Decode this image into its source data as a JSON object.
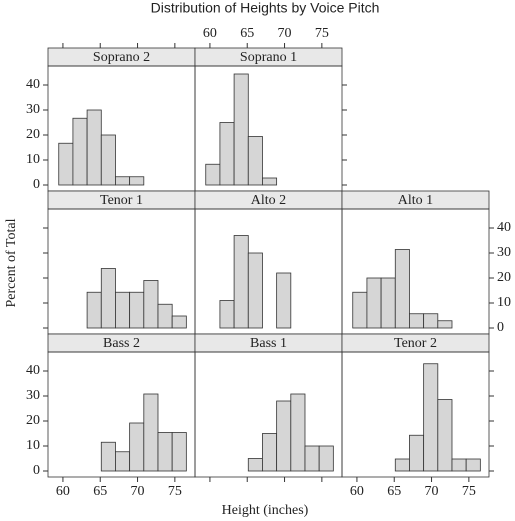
{
  "chart_data": {
    "type": "histogram",
    "title": "Distribution of Heights by Voice Pitch",
    "xlabel": "Height (inches)",
    "ylabel": "Percent of Total",
    "bins": [
      59.44,
      61.34,
      63.24,
      65.14,
      67.04,
      68.94,
      70.84,
      72.74,
      74.64,
      76.54
    ],
    "xlim": [
      58,
      77.7
    ],
    "ylim": [
      -2.4,
      47.6
    ],
    "xticks": [
      60,
      65,
      70,
      75
    ],
    "yticks": [
      0,
      10,
      20,
      30,
      40
    ],
    "color": "#d6d6d6",
    "strip_color": "#e8e8e8",
    "grid": false,
    "panels": [
      {
        "name": "Soprano 2",
        "values": [
          16.7,
          26.7,
          30,
          20,
          3.3,
          3.3,
          0,
          0,
          0
        ]
      },
      {
        "name": "Soprano 1",
        "values": [
          8.3,
          25,
          44.4,
          19.4,
          2.8,
          0,
          0,
          0,
          0
        ]
      },
      {
        "name": "Tenor 1",
        "values": [
          0,
          0,
          14.3,
          23.8,
          14.3,
          14.3,
          19,
          9.5,
          4.8
        ]
      },
      {
        "name": "Alto 2",
        "values": [
          0,
          11,
          37,
          30,
          0,
          22,
          0,
          0,
          0
        ]
      },
      {
        "name": "Alto 1",
        "values": [
          14.3,
          20,
          20,
          31.4,
          5.7,
          5.7,
          2.9,
          0,
          0
        ]
      },
      {
        "name": "Bass 2",
        "values": [
          0,
          0,
          0,
          11.5,
          7.7,
          19.2,
          30.8,
          15.4,
          15.4
        ]
      },
      {
        "name": "Bass 1",
        "values": [
          0,
          0,
          0,
          5,
          15,
          28,
          30.8,
          10,
          10
        ]
      },
      {
        "name": "Tenor 2",
        "values": [
          0,
          0,
          0,
          4.8,
          14.3,
          42.9,
          28.6,
          4.8,
          4.8
        ]
      }
    ]
  }
}
